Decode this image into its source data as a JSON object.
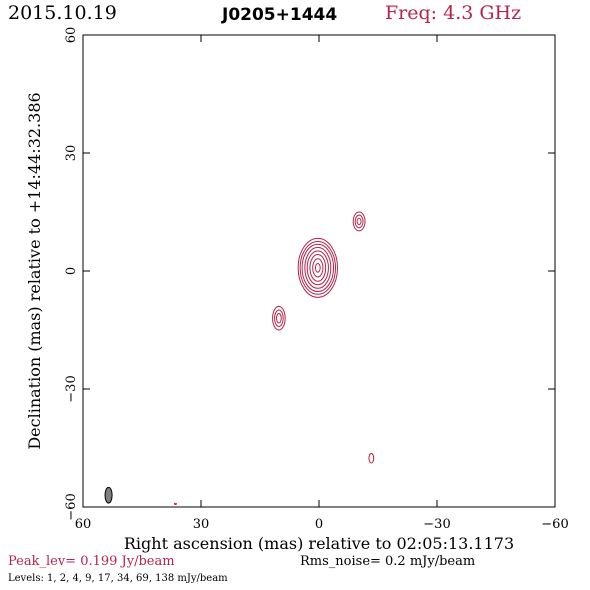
{
  "header": {
    "date": "2015.10.19",
    "source": "J0205+1444",
    "freq": "Freq: 4.3 GHz"
  },
  "footer": {
    "peak": "Peak_lev=  0.199 Jy/beam",
    "rms": "Rms_noise=  0.2 mJy/beam",
    "levels": "Levels:   1,   2,   4,   9,  17,  34,  69, 138 mJy/beam"
  },
  "colors": {
    "contour": "#b5244a",
    "beam": "#808080"
  },
  "chart_data": {
    "type": "contour",
    "title": "J0205+1444",
    "xlabel": "Right ascension (mas) relative to 02:05:13.1173",
    "ylabel": "Declination (mas) relative to +14:44:32.386",
    "xlim": [
      60,
      -60
    ],
    "ylim": [
      -60,
      60
    ],
    "xticks": [
      60,
      30,
      0,
      -30,
      -60
    ],
    "yticks": [
      -60,
      -30,
      0,
      30,
      60
    ],
    "xtick_labels": [
      "60",
      "30",
      "0",
      "−30",
      "−60"
    ],
    "ytick_labels": [
      "−60",
      "−30",
      "0",
      "30",
      "60"
    ],
    "levels_mJy": [
      1,
      2,
      4,
      9,
      17,
      34,
      69,
      138
    ],
    "components": [
      {
        "x": 0.3,
        "y": 0.8,
        "rx": [
          5.0,
          4.5,
          4.0,
          3.3,
          2.7,
          2.0,
          1.3,
          0.6
        ],
        "ry": [
          7.5,
          6.7,
          6.0,
          5.2,
          4.3,
          3.4,
          2.3,
          1.1
        ]
      },
      {
        "x": 10.2,
        "y": -12.0,
        "rx": [
          1.6,
          1.1,
          0.6
        ],
        "ry": [
          3.0,
          2.1,
          1.2
        ]
      },
      {
        "x": -10.2,
        "y": 12.6,
        "rx": [
          1.5,
          1.0,
          0.5
        ],
        "ry": [
          2.4,
          1.6,
          0.8
        ]
      },
      {
        "x": -13.3,
        "y": -47.6,
        "rx": [
          0.6
        ],
        "ry": [
          1.2
        ]
      },
      {
        "x": 36.5,
        "y": -59.2,
        "rx": [
          0.25
        ],
        "ry": [
          0.15
        ]
      }
    ],
    "beam": {
      "x": 53.5,
      "y": -57.0,
      "major": 4.0,
      "minor": 1.8
    }
  }
}
